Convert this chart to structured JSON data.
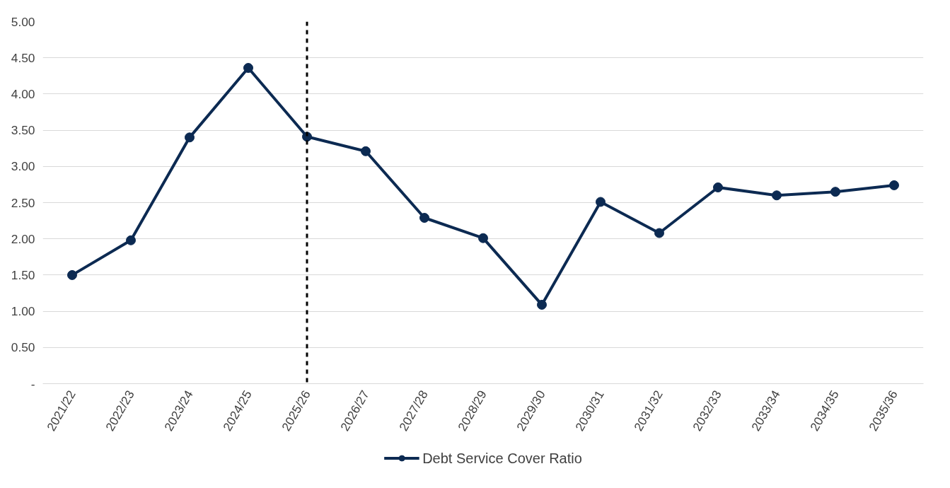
{
  "chart_data": {
    "type": "line",
    "categories": [
      "2021/22",
      "2022/23",
      "2023/24",
      "2024/25",
      "2025/26",
      "2026/27",
      "2027/28",
      "2028/29",
      "2029/30",
      "2030/31",
      "2031/32",
      "2032/33",
      "2033/34",
      "2034/35",
      "2035/36"
    ],
    "series": [
      {
        "name": "Debt Service Cover Ratio",
        "color": "#0c2a52",
        "values": [
          1.5,
          1.98,
          3.4,
          4.36,
          3.41,
          3.21,
          2.29,
          2.01,
          1.09,
          2.51,
          2.08,
          2.71,
          2.6,
          2.65,
          2.74
        ]
      }
    ],
    "ylim": [
      0,
      5
    ],
    "yticks": [
      {
        "value": 0,
        "label": "-"
      },
      {
        "value": 0.5,
        "label": "0.50"
      },
      {
        "value": 1,
        "label": "1.00"
      },
      {
        "value": 1.5,
        "label": "1.50"
      },
      {
        "value": 2,
        "label": "2.00"
      },
      {
        "value": 2.5,
        "label": "2.50"
      },
      {
        "value": 3,
        "label": "3.00"
      },
      {
        "value": 3.5,
        "label": "3.50"
      },
      {
        "value": 4,
        "label": "4.00"
      },
      {
        "value": 4.5,
        "label": "4.50"
      },
      {
        "value": 5,
        "label": "5.00"
      }
    ],
    "ref_lines": [
      {
        "axis": "x",
        "value": "2025/26",
        "color": "#000000",
        "line_style": "dashed"
      }
    ],
    "grid": "y",
    "legend": "bottom",
    "marker": "circle",
    "line_style": "solid"
  }
}
